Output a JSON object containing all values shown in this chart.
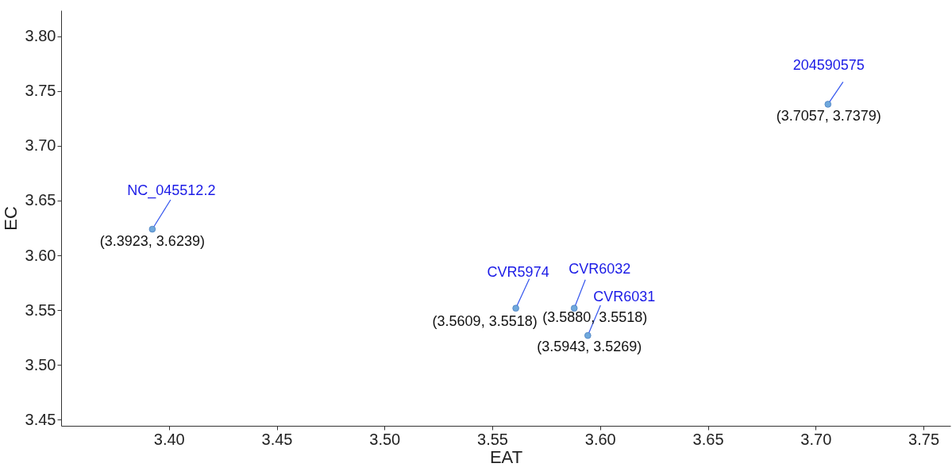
{
  "chart_data": {
    "type": "scatter",
    "xlabel": "EAT",
    "ylabel": "EC",
    "x": [
      3.3923,
      3.7057,
      3.5609,
      3.588,
      3.5943
    ],
    "series": [
      {
        "color": "#6fa8dc",
        "values": [
          3.6239,
          3.7379,
          3.5518,
          3.5518,
          3.5269
        ]
      }
    ],
    "xlim": [
      3.35,
      3.7625
    ],
    "ylim": [
      3.4445,
      3.8236
    ],
    "xticks": [
      {
        "value": 3.4,
        "label": "3.40"
      },
      3.45,
      {
        "value": 3.5,
        "label": "3.50"
      },
      3.55,
      {
        "value": 3.6,
        "label": "3.60"
      },
      3.65,
      {
        "value": 3.7,
        "label": "3.70"
      },
      3.75
    ],
    "yticks": [
      3.45,
      {
        "value": 3.5,
        "label": "3.50"
      },
      3.55,
      {
        "value": 3.6,
        "label": "3.60"
      },
      3.65,
      {
        "value": 3.7,
        "label": "3.70"
      },
      3.75,
      {
        "value": 3.8,
        "label": "3.80"
      }
    ],
    "grid": false,
    "marker": "circle",
    "annotations": [
      {
        "text": "NC_045512.2",
        "x": 3.3923,
        "y": 3.6239
      },
      {
        "text": "204590575",
        "x": 3.7057,
        "y": 3.7379
      },
      {
        "text": "CVR5974",
        "x": 3.5609,
        "y": 3.5518
      },
      {
        "text": "CVR6032",
        "x": 3.588,
        "y": 3.5518
      },
      {
        "text": "CVR6031",
        "x": 3.5943,
        "y": 3.5269
      },
      {
        "text": "(3.3923, 3.6239)",
        "x": 3.3923,
        "y": 3.6239
      },
      {
        "text": "(3.7057, 3.7379)",
        "x": 3.7057,
        "y": 3.7379
      },
      {
        "text": "(3.5609, 3.5518)",
        "x": 3.5609,
        "y": 3.5518
      },
      {
        "text": "(3.5880, 3.5518)",
        "x": 3.588,
        "y": 3.5518
      },
      {
        "text": "(3.5943, 3.5269)",
        "x": 3.5943,
        "y": 3.5269
      }
    ]
  }
}
